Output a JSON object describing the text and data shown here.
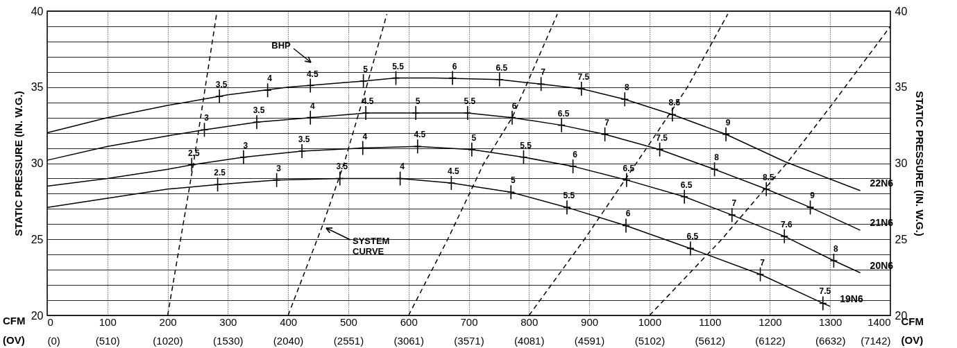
{
  "chart_data": {
    "type": "line",
    "xlabel": "CFM",
    "x2label": "(OV)",
    "ylabel": "STATIC PRESSURE (IN. W.G.)",
    "y2label": "STATIC PRESSURE (IN. W.G.)",
    "xlim": [
      0,
      1400
    ],
    "xticks": [
      0,
      100,
      200,
      300,
      400,
      500,
      600,
      700,
      800,
      900,
      1000,
      1100,
      1200,
      1300,
      1400
    ],
    "x2lim": [
      0,
      7142
    ],
    "x2ticks": [
      {
        "value": 0,
        "label": "(0)"
      },
      {
        "value": 510,
        "label": "(510)"
      },
      {
        "value": 1020,
        "label": "(1020)"
      },
      {
        "value": 1530,
        "label": "(1530)"
      },
      {
        "value": 2040,
        "label": "(2040)"
      },
      {
        "value": 2551,
        "label": "(2551)"
      },
      {
        "value": 3061,
        "label": "(3061)"
      },
      {
        "value": 3571,
        "label": "(3571)"
      },
      {
        "value": 4081,
        "label": "(4081)"
      },
      {
        "value": 4591,
        "label": "(4591)"
      },
      {
        "value": 5102,
        "label": "(5102)"
      },
      {
        "value": 5612,
        "label": "(5612)"
      },
      {
        "value": 6122,
        "label": "(6122)"
      },
      {
        "value": 6632,
        "label": "(6632)"
      },
      {
        "value": 7142,
        "label": "(7142)"
      }
    ],
    "ylim": [
      20,
      40
    ],
    "yticks": [
      20,
      {
        "value": 21,
        "label": null
      },
      {
        "value": 22,
        "label": null
      },
      {
        "value": 23,
        "label": null
      },
      {
        "value": 24,
        "label": null
      },
      25,
      {
        "value": 26,
        "label": null
      },
      {
        "value": 27,
        "label": null
      },
      {
        "value": 28,
        "label": null
      },
      {
        "value": 29,
        "label": null
      },
      30,
      {
        "value": 31,
        "label": null
      },
      {
        "value": 32,
        "label": null
      },
      {
        "value": 33,
        "label": null
      },
      {
        "value": 34,
        "label": null
      },
      35,
      {
        "value": 36,
        "label": null
      },
      {
        "value": 37,
        "label": null
      },
      {
        "value": 38,
        "label": null
      },
      {
        "value": 39,
        "label": null
      },
      40
    ],
    "y2lim": [
      20,
      40
    ],
    "y2ticks": [
      20,
      25,
      30,
      35,
      40
    ],
    "grid": true,
    "series": [
      {
        "name": "22N6",
        "type": "line",
        "color": "#000000",
        "line_style": "solid",
        "x": [
          0,
          100,
          200,
          300,
          400,
          525,
          579,
          644,
          751,
          820,
          887,
          959,
          1038,
          1127,
          1225,
          1350
        ],
        "values": [
          32.0,
          33.0,
          33.8,
          34.5,
          35.0,
          35.4,
          35.6,
          35.6,
          35.5,
          35.2,
          34.9,
          34.2,
          33.2,
          31.9,
          30.1,
          28.2
        ]
      },
      {
        "name": "21N6",
        "type": "line",
        "color": "#000000",
        "line_style": "solid",
        "x": [
          0,
          100,
          200,
          261,
          348,
          437,
          529,
          612,
          698,
          772,
          854,
          926,
          1017,
          1108,
          1194,
          1267,
          1350
        ],
        "values": [
          30.2,
          31.1,
          31.8,
          32.2,
          32.7,
          33.0,
          33.3,
          33.3,
          33.3,
          33.0,
          32.5,
          31.9,
          30.9,
          29.6,
          28.3,
          27.1,
          25.6
        ]
      },
      {
        "name": "20N6",
        "type": "line",
        "color": "#000000",
        "line_style": "solid",
        "x": [
          0,
          100,
          200,
          240,
          326,
          423,
          524,
          615,
          705,
          791,
          873,
          962,
          1058,
          1137,
          1224,
          1306,
          1350
        ],
        "values": [
          28.5,
          29.0,
          29.6,
          29.9,
          30.4,
          30.8,
          31.0,
          31.1,
          30.9,
          30.4,
          29.8,
          28.9,
          27.8,
          26.6,
          25.2,
          23.6,
          22.8
        ]
      },
      {
        "name": "19N6",
        "type": "line",
        "color": "#000000",
        "line_style": "solid",
        "x": [
          0,
          100,
          200,
          283,
          381,
          486,
          586,
          671,
          770,
          863,
          961,
          1068,
          1184,
          1288,
          1300
        ],
        "values": [
          27.1,
          27.7,
          28.3,
          28.6,
          28.9,
          29.0,
          29.0,
          28.7,
          28.1,
          27.1,
          25.9,
          24.4,
          22.7,
          20.8,
          20.6
        ]
      },
      {
        "type": "line",
        "color": "#000000",
        "line_style": "dashed",
        "x": [
          200,
          243,
          282
        ],
        "values": [
          20,
          30,
          40
        ]
      },
      {
        "type": "line",
        "color": "#000000",
        "line_style": "dashed",
        "x": [
          400,
          458,
          493,
          530,
          564
        ],
        "values": [
          20,
          26,
          30,
          35,
          39.8
        ]
      },
      {
        "type": "line",
        "color": "#000000",
        "line_style": "dashed",
        "x": [
          600,
          665,
          725,
          772,
          847
        ],
        "values": [
          20,
          25,
          30,
          33,
          39.8
        ]
      },
      {
        "type": "line",
        "color": "#000000",
        "line_style": "dashed",
        "x": [
          800,
          892,
          997,
          1063,
          1130
        ],
        "values": [
          20,
          25,
          31.1,
          35,
          39.8
        ]
      },
      {
        "type": "line",
        "color": "#000000",
        "line_style": "dashed",
        "x": [
          1000,
          1120,
          1230,
          1300,
          1400
        ],
        "values": [
          20,
          25,
          30.1,
          33.7,
          39.0
        ]
      },
      {
        "type": "scatter",
        "marker": "cross",
        "color": "#000000",
        "x": [
          286,
          366,
          437,
          525,
          579,
          673,
          751,
          820,
          887,
          959,
          1038,
          1127
        ],
        "values": [
          34.4,
          34.8,
          35.1,
          35.4,
          35.6,
          35.6,
          35.5,
          35.2,
          34.9,
          34.2,
          33.2,
          31.9
        ]
      },
      {
        "type": "scatter",
        "marker": "cross",
        "color": "#000000",
        "x": [
          261,
          348,
          437,
          529,
          612,
          698,
          772,
          854,
          926,
          1017,
          1108,
          1194,
          1267
        ],
        "values": [
          32.2,
          32.7,
          33.0,
          33.3,
          33.3,
          33.3,
          33.0,
          32.5,
          31.9,
          30.9,
          29.6,
          28.3,
          27.1
        ]
      },
      {
        "type": "scatter",
        "marker": "cross",
        "color": "#000000",
        "x": [
          240,
          326,
          423,
          524,
          615,
          705,
          791,
          873,
          962,
          1058,
          1137,
          1224,
          1306
        ],
        "values": [
          29.9,
          30.4,
          30.8,
          31.0,
          31.1,
          30.9,
          30.4,
          29.8,
          28.9,
          27.8,
          26.6,
          25.2,
          23.6
        ]
      },
      {
        "type": "scatter",
        "marker": "cross",
        "color": "#000000",
        "x": [
          283,
          381,
          486,
          586,
          671,
          770,
          863,
          961,
          1068,
          1184,
          1288
        ],
        "values": [
          28.6,
          28.9,
          29.0,
          29.0,
          28.7,
          28.1,
          27.1,
          25.9,
          24.4,
          22.7,
          20.8
        ]
      }
    ],
    "annotations": [
      "BHP",
      "SYSTEM CURVE",
      {
        "text": "3.5",
        "x": 286,
        "y": 34.4
      },
      {
        "text": "4",
        "x": 366,
        "y": 34.8
      },
      {
        "text": "4.5",
        "x": 437,
        "y": 35.1
      },
      {
        "text": "5",
        "x": 525,
        "y": 35.4
      },
      {
        "text": "5.5",
        "x": 579,
        "y": 35.6
      },
      {
        "text": "6",
        "x": 673,
        "y": 35.6
      },
      {
        "text": "6.5",
        "x": 751,
        "y": 35.5
      },
      {
        "text": "7",
        "x": 820,
        "y": 35.2
      },
      {
        "text": "7.5",
        "x": 887,
        "y": 34.9
      },
      {
        "text": "8",
        "x": 959,
        "y": 34.2
      },
      {
        "text": "8.5",
        "x": 1038,
        "y": 33.2
      },
      {
        "text": "9",
        "x": 1127,
        "y": 31.9
      },
      {
        "text": "3",
        "x": 261,
        "y": 32.2
      },
      {
        "text": "3.5",
        "x": 348,
        "y": 32.7
      },
      {
        "text": "4",
        "x": 437,
        "y": 33.0
      },
      {
        "text": "4.5",
        "x": 529,
        "y": 33.3
      },
      {
        "text": "5",
        "x": 612,
        "y": 33.3
      },
      {
        "text": "5.5",
        "x": 698,
        "y": 33.3
      },
      {
        "text": "6",
        "x": 772,
        "y": 33.0
      },
      {
        "text": "6.5",
        "x": 854,
        "y": 32.5
      },
      {
        "text": "7",
        "x": 926,
        "y": 31.9
      },
      {
        "text": "7.5",
        "x": 1017,
        "y": 30.9
      },
      {
        "text": "8",
        "x": 1108,
        "y": 29.6
      },
      {
        "text": "8.5",
        "x": 1194,
        "y": 28.3
      },
      {
        "text": "9",
        "x": 1267,
        "y": 27.1
      },
      {
        "text": "2.5",
        "x": 240,
        "y": 29.9
      },
      {
        "text": "3",
        "x": 326,
        "y": 30.4
      },
      {
        "text": "3.5",
        "x": 423,
        "y": 30.8
      },
      {
        "text": "4",
        "x": 524,
        "y": 31.0
      },
      {
        "text": "4.5",
        "x": 615,
        "y": 31.1
      },
      {
        "text": "5",
        "x": 705,
        "y": 30.9
      },
      {
        "text": "5.5",
        "x": 791,
        "y": 30.4
      },
      {
        "text": "6",
        "x": 873,
        "y": 29.8
      },
      {
        "text": "6.5",
        "x": 962,
        "y": 28.9
      },
      {
        "text": "6.5",
        "x": 1058,
        "y": 27.8
      },
      {
        "text": "7",
        "x": 1137,
        "y": 26.6
      },
      {
        "text": "7.6",
        "x": 1224,
        "y": 25.2
      },
      {
        "text": "8",
        "x": 1306,
        "y": 23.6
      },
      {
        "text": "2.5",
        "x": 283,
        "y": 28.6
      },
      {
        "text": "3",
        "x": 381,
        "y": 28.9
      },
      {
        "text": "3.5",
        "x": 486,
        "y": 29.0
      },
      {
        "text": "4",
        "x": 586,
        "y": 29.0
      },
      {
        "text": "4.5",
        "x": 671,
        "y": 28.7
      },
      {
        "text": "5",
        "x": 770,
        "y": 28.1
      },
      {
        "text": "5.5",
        "x": 863,
        "y": 27.1
      },
      {
        "text": "6",
        "x": 961,
        "y": 25.9
      },
      {
        "text": "6.5",
        "x": 1068,
        "y": 24.4
      },
      {
        "text": "7",
        "x": 1184,
        "y": 22.7
      },
      {
        "text": "7.5",
        "x": 1288,
        "y": 20.8
      }
    ]
  }
}
